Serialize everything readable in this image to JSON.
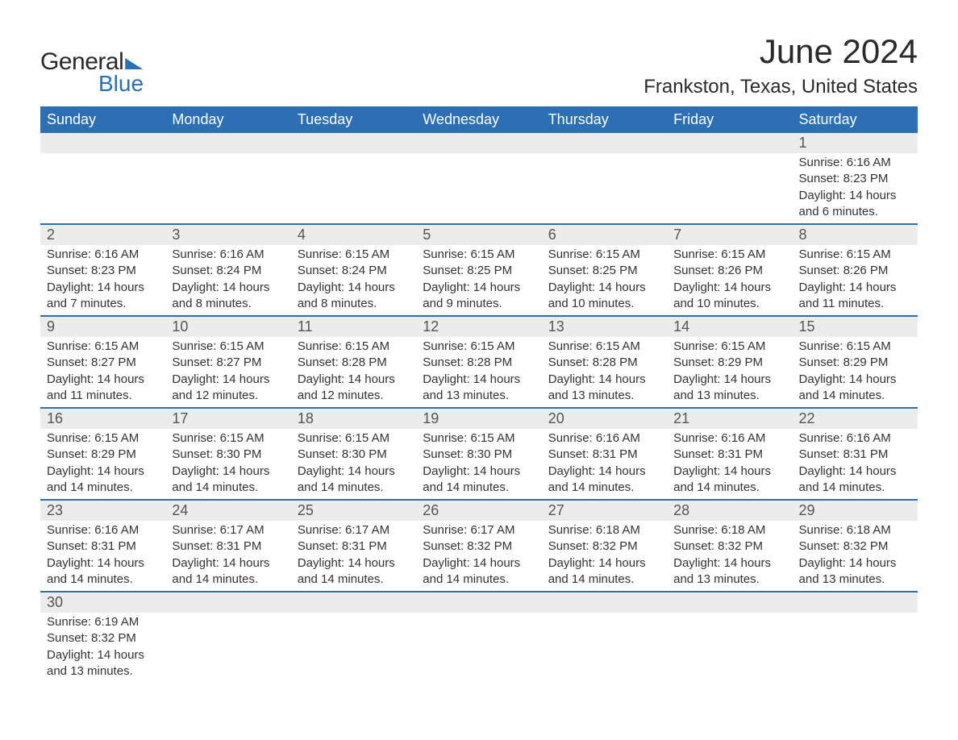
{
  "logo": {
    "word1": "General",
    "word2": "Blue"
  },
  "title": "June 2024",
  "location": "Frankston, Texas, United States",
  "colors": {
    "header_bg": "#2c6fb3",
    "header_text": "#ffffff",
    "daynum_bg": "#ececec",
    "row_border": "#2c6fb3",
    "body_text": "#333333",
    "page_bg": "#ffffff"
  },
  "weekdays": [
    "Sunday",
    "Monday",
    "Tuesday",
    "Wednesday",
    "Thursday",
    "Friday",
    "Saturday"
  ],
  "weeks": [
    [
      null,
      null,
      null,
      null,
      null,
      null,
      {
        "n": "1",
        "sr": "Sunrise: 6:16 AM",
        "ss": "Sunset: 8:23 PM",
        "dl1": "Daylight: 14 hours",
        "dl2": "and 6 minutes."
      }
    ],
    [
      {
        "n": "2",
        "sr": "Sunrise: 6:16 AM",
        "ss": "Sunset: 8:23 PM",
        "dl1": "Daylight: 14 hours",
        "dl2": "and 7 minutes."
      },
      {
        "n": "3",
        "sr": "Sunrise: 6:16 AM",
        "ss": "Sunset: 8:24 PM",
        "dl1": "Daylight: 14 hours",
        "dl2": "and 8 minutes."
      },
      {
        "n": "4",
        "sr": "Sunrise: 6:15 AM",
        "ss": "Sunset: 8:24 PM",
        "dl1": "Daylight: 14 hours",
        "dl2": "and 8 minutes."
      },
      {
        "n": "5",
        "sr": "Sunrise: 6:15 AM",
        "ss": "Sunset: 8:25 PM",
        "dl1": "Daylight: 14 hours",
        "dl2": "and 9 minutes."
      },
      {
        "n": "6",
        "sr": "Sunrise: 6:15 AM",
        "ss": "Sunset: 8:25 PM",
        "dl1": "Daylight: 14 hours",
        "dl2": "and 10 minutes."
      },
      {
        "n": "7",
        "sr": "Sunrise: 6:15 AM",
        "ss": "Sunset: 8:26 PM",
        "dl1": "Daylight: 14 hours",
        "dl2": "and 10 minutes."
      },
      {
        "n": "8",
        "sr": "Sunrise: 6:15 AM",
        "ss": "Sunset: 8:26 PM",
        "dl1": "Daylight: 14 hours",
        "dl2": "and 11 minutes."
      }
    ],
    [
      {
        "n": "9",
        "sr": "Sunrise: 6:15 AM",
        "ss": "Sunset: 8:27 PM",
        "dl1": "Daylight: 14 hours",
        "dl2": "and 11 minutes."
      },
      {
        "n": "10",
        "sr": "Sunrise: 6:15 AM",
        "ss": "Sunset: 8:27 PM",
        "dl1": "Daylight: 14 hours",
        "dl2": "and 12 minutes."
      },
      {
        "n": "11",
        "sr": "Sunrise: 6:15 AM",
        "ss": "Sunset: 8:28 PM",
        "dl1": "Daylight: 14 hours",
        "dl2": "and 12 minutes."
      },
      {
        "n": "12",
        "sr": "Sunrise: 6:15 AM",
        "ss": "Sunset: 8:28 PM",
        "dl1": "Daylight: 14 hours",
        "dl2": "and 13 minutes."
      },
      {
        "n": "13",
        "sr": "Sunrise: 6:15 AM",
        "ss": "Sunset: 8:28 PM",
        "dl1": "Daylight: 14 hours",
        "dl2": "and 13 minutes."
      },
      {
        "n": "14",
        "sr": "Sunrise: 6:15 AM",
        "ss": "Sunset: 8:29 PM",
        "dl1": "Daylight: 14 hours",
        "dl2": "and 13 minutes."
      },
      {
        "n": "15",
        "sr": "Sunrise: 6:15 AM",
        "ss": "Sunset: 8:29 PM",
        "dl1": "Daylight: 14 hours",
        "dl2": "and 14 minutes."
      }
    ],
    [
      {
        "n": "16",
        "sr": "Sunrise: 6:15 AM",
        "ss": "Sunset: 8:29 PM",
        "dl1": "Daylight: 14 hours",
        "dl2": "and 14 minutes."
      },
      {
        "n": "17",
        "sr": "Sunrise: 6:15 AM",
        "ss": "Sunset: 8:30 PM",
        "dl1": "Daylight: 14 hours",
        "dl2": "and 14 minutes."
      },
      {
        "n": "18",
        "sr": "Sunrise: 6:15 AM",
        "ss": "Sunset: 8:30 PM",
        "dl1": "Daylight: 14 hours",
        "dl2": "and 14 minutes."
      },
      {
        "n": "19",
        "sr": "Sunrise: 6:15 AM",
        "ss": "Sunset: 8:30 PM",
        "dl1": "Daylight: 14 hours",
        "dl2": "and 14 minutes."
      },
      {
        "n": "20",
        "sr": "Sunrise: 6:16 AM",
        "ss": "Sunset: 8:31 PM",
        "dl1": "Daylight: 14 hours",
        "dl2": "and 14 minutes."
      },
      {
        "n": "21",
        "sr": "Sunrise: 6:16 AM",
        "ss": "Sunset: 8:31 PM",
        "dl1": "Daylight: 14 hours",
        "dl2": "and 14 minutes."
      },
      {
        "n": "22",
        "sr": "Sunrise: 6:16 AM",
        "ss": "Sunset: 8:31 PM",
        "dl1": "Daylight: 14 hours",
        "dl2": "and 14 minutes."
      }
    ],
    [
      {
        "n": "23",
        "sr": "Sunrise: 6:16 AM",
        "ss": "Sunset: 8:31 PM",
        "dl1": "Daylight: 14 hours",
        "dl2": "and 14 minutes."
      },
      {
        "n": "24",
        "sr": "Sunrise: 6:17 AM",
        "ss": "Sunset: 8:31 PM",
        "dl1": "Daylight: 14 hours",
        "dl2": "and 14 minutes."
      },
      {
        "n": "25",
        "sr": "Sunrise: 6:17 AM",
        "ss": "Sunset: 8:31 PM",
        "dl1": "Daylight: 14 hours",
        "dl2": "and 14 minutes."
      },
      {
        "n": "26",
        "sr": "Sunrise: 6:17 AM",
        "ss": "Sunset: 8:32 PM",
        "dl1": "Daylight: 14 hours",
        "dl2": "and 14 minutes."
      },
      {
        "n": "27",
        "sr": "Sunrise: 6:18 AM",
        "ss": "Sunset: 8:32 PM",
        "dl1": "Daylight: 14 hours",
        "dl2": "and 14 minutes."
      },
      {
        "n": "28",
        "sr": "Sunrise: 6:18 AM",
        "ss": "Sunset: 8:32 PM",
        "dl1": "Daylight: 14 hours",
        "dl2": "and 13 minutes."
      },
      {
        "n": "29",
        "sr": "Sunrise: 6:18 AM",
        "ss": "Sunset: 8:32 PM",
        "dl1": "Daylight: 14 hours",
        "dl2": "and 13 minutes."
      }
    ],
    [
      {
        "n": "30",
        "sr": "Sunrise: 6:19 AM",
        "ss": "Sunset: 8:32 PM",
        "dl1": "Daylight: 14 hours",
        "dl2": "and 13 minutes."
      },
      null,
      null,
      null,
      null,
      null,
      null
    ]
  ]
}
